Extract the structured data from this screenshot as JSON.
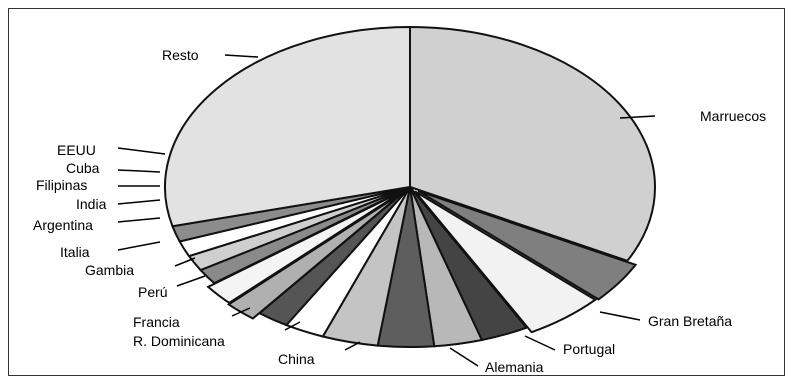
{
  "chart_data": {
    "type": "pie",
    "title": "",
    "slices": [
      {
        "label": "Marruecos",
        "value": 31.0,
        "color": "#d0d0d0"
      },
      {
        "label": "Gran Bretaña",
        "value": 4.0,
        "color": "#7f7f7f"
      },
      {
        "label": "Portugal",
        "value": 5.0,
        "color": "#f2f2f2"
      },
      {
        "label": "Alemania",
        "value": 3.0,
        "color": "#444444"
      },
      {
        "label": "China",
        "value": 3.0,
        "color": "#b8b8b8"
      },
      {
        "label": "R. Dominicana",
        "value": 3.5,
        "color": "#5e5e5e"
      },
      {
        "label": "Francia",
        "value": 3.5,
        "color": "#c4c4c4"
      },
      {
        "label": "Perú",
        "value": 2.5,
        "color": "#ffffff"
      },
      {
        "label": "Gambia",
        "value": 2.0,
        "color": "#555555"
      },
      {
        "label": "Italia",
        "value": 2.0,
        "color": "#b0b0b0"
      },
      {
        "label": "Argentina",
        "value": 2.0,
        "color": "#f4f4f4"
      },
      {
        "label": "India",
        "value": 1.5,
        "color": "#8a8a8a"
      },
      {
        "label": "Filipinas",
        "value": 1.5,
        "color": "#cfcfcf"
      },
      {
        "label": "Cuba",
        "value": 1.5,
        "color": "#ffffff"
      },
      {
        "label": "EEUU",
        "value": 1.5,
        "color": "#8c8c8c"
      },
      {
        "label": "Resto",
        "value": 27.5,
        "color": "#e2e2e2"
      }
    ]
  }
}
